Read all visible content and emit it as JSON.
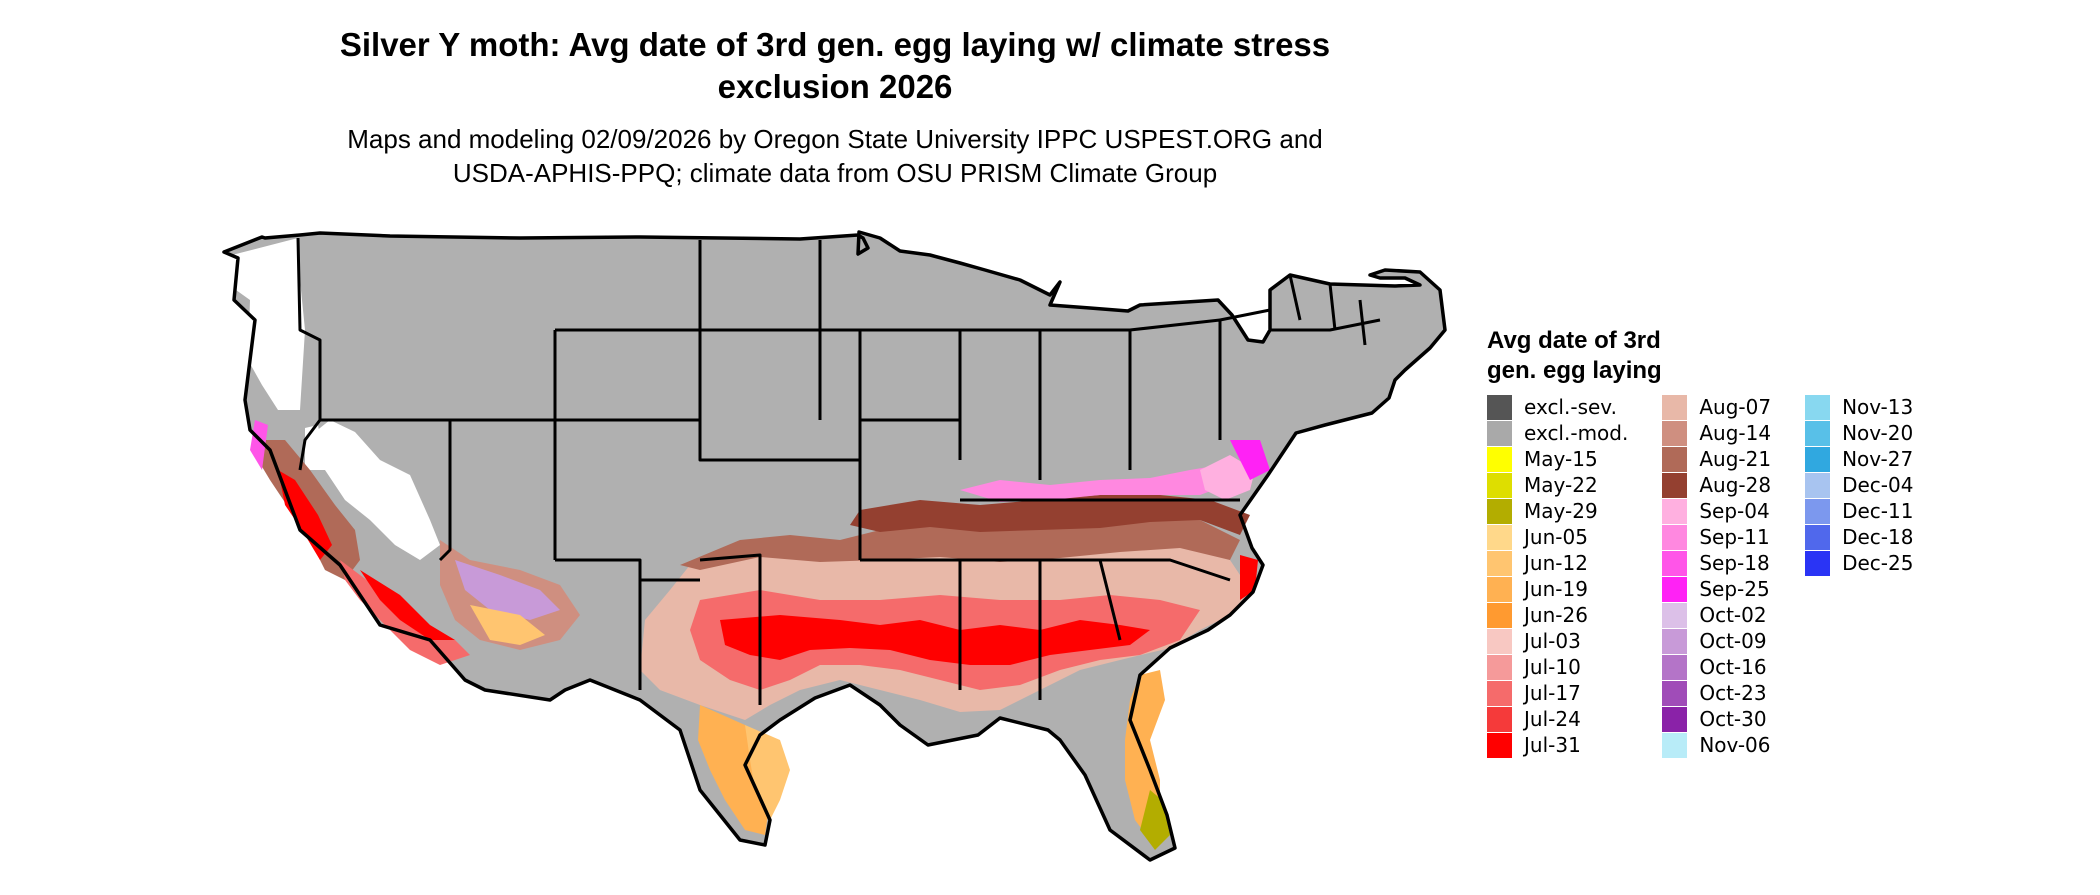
{
  "title_line1": "Silver Y moth: Avg date of 3rd gen. egg laying w/ climate stress",
  "title_line2": "exclusion 2026",
  "subtitle_line1": "Maps and modeling 02/09/2026 by Oregon State University IPPC USPEST.ORG and",
  "subtitle_line2": "USDA-APHIS-PPQ; climate data from OSU PRISM Climate Group",
  "legend": {
    "title_line1": "Avg date of 3rd",
    "title_line2": "gen. egg laying",
    "items": [
      {
        "label": "excl.-sev.",
        "color": "#555555"
      },
      {
        "label": "excl.-mod.",
        "color": "#a9a9a9"
      },
      {
        "label": "May-15",
        "color": "#ffff00"
      },
      {
        "label": "May-22",
        "color": "#dede00"
      },
      {
        "label": "May-29",
        "color": "#b3ad00"
      },
      {
        "label": "Jun-05",
        "color": "#ffd88a"
      },
      {
        "label": "Jun-12",
        "color": "#ffc570"
      },
      {
        "label": "Jun-19",
        "color": "#ffb152"
      },
      {
        "label": "Jun-26",
        "color": "#ff9a30"
      },
      {
        "label": "Jul-03",
        "color": "#f8c8c2"
      },
      {
        "label": "Jul-10",
        "color": "#f59a9a"
      },
      {
        "label": "Jul-17",
        "color": "#f56b6b"
      },
      {
        "label": "Jul-24",
        "color": "#f53a3a"
      },
      {
        "label": "Jul-31",
        "color": "#ff0000"
      },
      {
        "label": "Aug-07",
        "color": "#e8b8a8"
      },
      {
        "label": "Aug-14",
        "color": "#cf8f80"
      },
      {
        "label": "Aug-21",
        "color": "#b06a58"
      },
      {
        "label": "Aug-28",
        "color": "#944030"
      },
      {
        "label": "Sep-04",
        "color": "#ffb0e0"
      },
      {
        "label": "Sep-11",
        "color": "#ff88e0"
      },
      {
        "label": "Sep-18",
        "color": "#ff55e8"
      },
      {
        "label": "Sep-25",
        "color": "#ff22f5"
      },
      {
        "label": "Oct-02",
        "color": "#dcc0e8"
      },
      {
        "label": "Oct-09",
        "color": "#c89ad8"
      },
      {
        "label": "Oct-16",
        "color": "#b474c8"
      },
      {
        "label": "Oct-23",
        "color": "#a04cb8"
      },
      {
        "label": "Oct-30",
        "color": "#8a22a8"
      },
      {
        "label": "Nov-06",
        "color": "#b8ecf8"
      },
      {
        "label": "Nov-13",
        "color": "#88d8f0"
      },
      {
        "label": "Nov-20",
        "color": "#58c0e8"
      },
      {
        "label": "Nov-27",
        "color": "#30a8e0"
      },
      {
        "label": "Dec-04",
        "color": "#a8c4f0"
      },
      {
        "label": "Dec-11",
        "color": "#7c98ee"
      },
      {
        "label": "Dec-18",
        "color": "#5068ec"
      },
      {
        "label": "Dec-25",
        "color": "#2a34f5"
      }
    ]
  },
  "map_colors": {
    "excluded": "#b0b0b0",
    "border": "#000000",
    "ocean": "#ffffff"
  }
}
